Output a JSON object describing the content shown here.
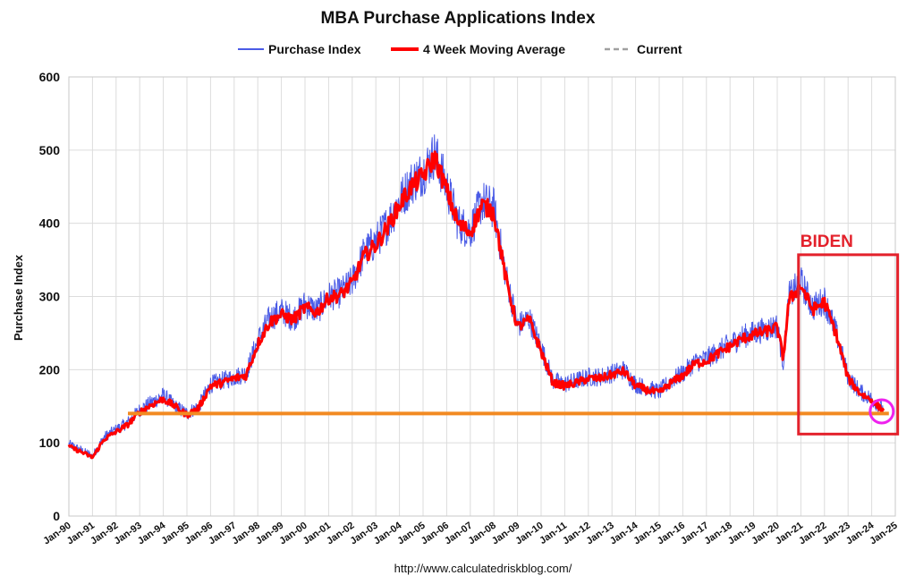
{
  "chart_data": {
    "type": "line",
    "title": "MBA Purchase Applications Index",
    "xlabel": "",
    "ylabel": "Purchase Index",
    "ylim": [
      0,
      600
    ],
    "yticks": [
      "0",
      "100",
      "200",
      "300",
      "400",
      "500",
      "600"
    ],
    "xlim": [
      1990,
      2025
    ],
    "xticks": [
      "Jan-90",
      "Jan-91",
      "Jan-92",
      "Jan-93",
      "Jan-94",
      "Jan-95",
      "Jan-96",
      "Jan-97",
      "Jan-98",
      "Jan-99",
      "Jan-00",
      "Jan-01",
      "Jan-02",
      "Jan-03",
      "Jan-04",
      "Jan-05",
      "Jan-06",
      "Jan-07",
      "Jan-08",
      "Jan-09",
      "Jan-10",
      "Jan-11",
      "Jan-12",
      "Jan-13",
      "Jan-14",
      "Jan-15",
      "Jan-16",
      "Jan-17",
      "Jan-18",
      "Jan-19",
      "Jan-20",
      "Jan-21",
      "Jan-22",
      "Jan-23",
      "Jan-24",
      "Jan-25"
    ],
    "grid": true,
    "legend_position": "top",
    "source": "http://www.calculatedriskblog.com/",
    "series": [
      {
        "name": "Purchase Index",
        "color": "#4a5be6",
        "x": [
          1990.0,
          1990.5,
          1991.0,
          1991.5,
          1992.0,
          1992.5,
          1993.0,
          1993.5,
          1994.0,
          1994.5,
          1995.0,
          1995.5,
          1996.0,
          1996.5,
          1997.0,
          1997.5,
          1998.0,
          1998.5,
          1999.0,
          1999.5,
          2000.0,
          2000.5,
          2001.0,
          2001.5,
          2002.0,
          2002.5,
          2003.0,
          2003.5,
          2004.0,
          2004.5,
          2005.0,
          2005.5,
          2006.0,
          2006.5,
          2007.0,
          2007.5,
          2008.0,
          2008.5,
          2009.0,
          2009.5,
          2010.0,
          2010.5,
          2011.0,
          2011.5,
          2012.0,
          2012.5,
          2013.0,
          2013.5,
          2014.0,
          2014.5,
          2015.0,
          2015.5,
          2016.0,
          2016.5,
          2017.0,
          2017.5,
          2018.0,
          2018.5,
          2019.0,
          2019.5,
          2020.0,
          2020.25,
          2020.5,
          2021.0,
          2021.5,
          2022.0,
          2022.5,
          2023.0,
          2023.5,
          2024.0,
          2024.5
        ],
        "y": [
          98,
          90,
          82,
          108,
          118,
          128,
          145,
          155,
          165,
          150,
          140,
          150,
          180,
          185,
          190,
          195,
          240,
          270,
          280,
          270,
          290,
          280,
          300,
          305,
          320,
          360,
          375,
          400,
          430,
          455,
          470,
          495,
          450,
          400,
          390,
          430,
          420,
          330,
          260,
          270,
          230,
          185,
          180,
          185,
          190,
          190,
          195,
          200,
          180,
          175,
          170,
          185,
          195,
          210,
          215,
          225,
          235,
          245,
          250,
          255,
          260,
          210,
          300,
          320,
          285,
          295,
          250,
          190,
          170,
          160,
          145
        ]
      },
      {
        "name": "4 Week Moving Average",
        "color": "#ff0000",
        "x": [
          1990.0,
          1990.5,
          1991.0,
          1991.5,
          1992.0,
          1992.5,
          1993.0,
          1993.5,
          1994.0,
          1994.5,
          1995.0,
          1995.5,
          1996.0,
          1996.5,
          1997.0,
          1997.5,
          1998.0,
          1998.5,
          1999.0,
          1999.5,
          2000.0,
          2000.5,
          2001.0,
          2001.5,
          2002.0,
          2002.5,
          2003.0,
          2003.5,
          2004.0,
          2004.5,
          2005.0,
          2005.5,
          2006.0,
          2006.5,
          2007.0,
          2007.5,
          2008.0,
          2008.5,
          2009.0,
          2009.5,
          2010.0,
          2010.5,
          2011.0,
          2011.5,
          2012.0,
          2012.5,
          2013.0,
          2013.5,
          2014.0,
          2014.5,
          2015.0,
          2015.5,
          2016.0,
          2016.5,
          2017.0,
          2017.5,
          2018.0,
          2018.5,
          2019.0,
          2019.5,
          2020.0,
          2020.25,
          2020.5,
          2021.0,
          2021.5,
          2022.0,
          2022.5,
          2023.0,
          2023.5,
          2024.0,
          2024.5
        ],
        "y": [
          95,
          88,
          80,
          105,
          115,
          125,
          142,
          152,
          160,
          150,
          138,
          148,
          178,
          182,
          188,
          192,
          235,
          265,
          275,
          268,
          285,
          278,
          298,
          302,
          318,
          355,
          370,
          395,
          425,
          450,
          465,
          490,
          445,
          398,
          388,
          425,
          415,
          325,
          258,
          268,
          225,
          182,
          178,
          182,
          188,
          188,
          193,
          198,
          178,
          172,
          168,
          182,
          192,
          208,
          212,
          222,
          232,
          242,
          248,
          252,
          258,
          215,
          295,
          315,
          282,
          292,
          248,
          188,
          168,
          158,
          143
        ]
      },
      {
        "name": "Current",
        "color": "#f28a22",
        "x": [
          1992.5,
          2024.5
        ],
        "y": [
          140,
          140
        ]
      }
    ],
    "annotations": [
      {
        "text": "BIDEN",
        "color": "#e3212b",
        "x_range": [
          2020.9,
          2025.1
        ],
        "y_range": [
          112,
          357
        ]
      }
    ]
  },
  "colors": {
    "purchase_index": "#4a5be6",
    "moving_average": "#ff0000",
    "current_line": "#f28a22",
    "current_legend": "#a0a0a0",
    "annotation": "#e3212b",
    "highlight_circle": "#ee22ee"
  }
}
